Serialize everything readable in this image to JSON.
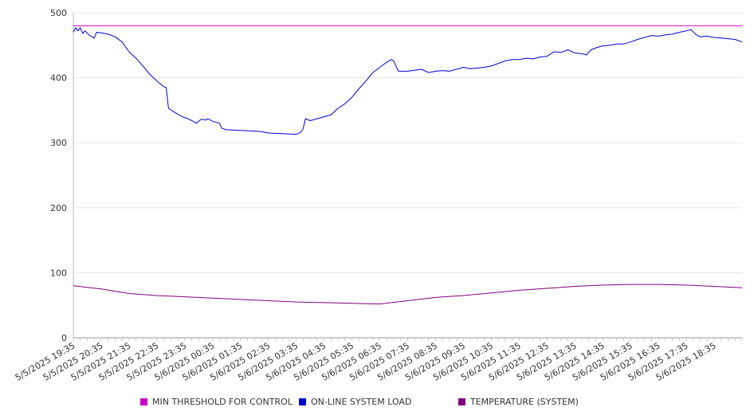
{
  "chart_data": {
    "type": "line",
    "title": "",
    "xlabel": "",
    "ylabel": "",
    "ylim": [
      0,
      500
    ],
    "yticks": [
      0,
      100,
      200,
      300,
      400,
      500
    ],
    "grid": "horizontal",
    "legend_position": "bottom",
    "x_ticks": [
      "5/5/2025 19:35",
      "5/5/2025 20:35",
      "5/5/2025 21:35",
      "5/5/2025 22:35",
      "5/5/2025 23:35",
      "5/6/2025 00:35",
      "5/6/2025 01:35",
      "5/6/2025 02:35",
      "5/6/2025 03:35",
      "5/6/2025 04:35",
      "5/6/2025 05:35",
      "5/6/2025 06:35",
      "5/6/2025 07:35",
      "5/6/2025 08:35",
      "5/6/2025 09:35",
      "5/6/2025 10:35",
      "5/6/2025 11:35",
      "5/6/2025 12:35",
      "5/6/2025 13:35",
      "5/6/2025 14:35",
      "5/6/2025 15:35",
      "5/6/2025 16:35",
      "5/6/2025 17:35",
      "5/6/2025 18:35"
    ],
    "x_start": "5/5/2025 19:35",
    "x_end": "5/6/2025 19:35",
    "series": [
      {
        "name": "MIN THRESHOLD FOR CONTROL",
        "color": "#cc00cc",
        "points": [
          [
            "5/5/2025 19:35",
            480
          ],
          [
            "5/6/2025 19:35",
            480
          ]
        ]
      },
      {
        "name": "ON-LINE SYSTEM LOAD",
        "color": "#0000cc",
        "points": [
          [
            "5/5/2025 19:35",
            470
          ],
          [
            "5/5/2025 19:40",
            477
          ],
          [
            "5/5/2025 19:45",
            472
          ],
          [
            "5/5/2025 19:50",
            477
          ],
          [
            "5/5/2025 19:55",
            468
          ],
          [
            "5/5/2025 20:00",
            472
          ],
          [
            "5/5/2025 20:10",
            465
          ],
          [
            "5/5/2025 20:20",
            461
          ],
          [
            "5/5/2025 20:25",
            470
          ],
          [
            "5/5/2025 20:35",
            469
          ],
          [
            "5/5/2025 20:50",
            467
          ],
          [
            "5/5/2025 21:05",
            463
          ],
          [
            "5/5/2025 21:20",
            455
          ],
          [
            "5/5/2025 21:35",
            440
          ],
          [
            "5/5/2025 21:50",
            430
          ],
          [
            "5/5/2025 22:05",
            418
          ],
          [
            "5/5/2025 22:20",
            405
          ],
          [
            "5/5/2025 22:35",
            395
          ],
          [
            "5/5/2025 22:50",
            386
          ],
          [
            "5/5/2025 22:55",
            385
          ],
          [
            "5/5/2025 23:00",
            353
          ],
          [
            "5/5/2025 23:15",
            346
          ],
          [
            "5/5/2025 23:30",
            340
          ],
          [
            "5/5/2025 23:45",
            336
          ],
          [
            "5/6/2025 00:00",
            330
          ],
          [
            "5/6/2025 00:10",
            336
          ],
          [
            "5/6/2025 00:20",
            335
          ],
          [
            "5/6/2025 00:25",
            337
          ],
          [
            "5/6/2025 00:35",
            333
          ],
          [
            "5/6/2025 00:50",
            330
          ],
          [
            "5/6/2025 00:55",
            322
          ],
          [
            "5/6/2025 01:05",
            320
          ],
          [
            "5/6/2025 01:35",
            319
          ],
          [
            "5/6/2025 02:05",
            318
          ],
          [
            "5/6/2025 02:20",
            317
          ],
          [
            "5/6/2025 02:35",
            315
          ],
          [
            "5/6/2025 03:05",
            314
          ],
          [
            "5/6/2025 03:35",
            313
          ],
          [
            "5/6/2025 03:45",
            316
          ],
          [
            "5/6/2025 03:50",
            322
          ],
          [
            "5/6/2025 03:55",
            337
          ],
          [
            "5/6/2025 04:05",
            334
          ],
          [
            "5/6/2025 04:20",
            337
          ],
          [
            "5/6/2025 04:35",
            340
          ],
          [
            "5/6/2025 04:50",
            343
          ],
          [
            "5/6/2025 05:05",
            353
          ],
          [
            "5/6/2025 05:20",
            360
          ],
          [
            "5/6/2025 05:35",
            370
          ],
          [
            "5/6/2025 05:50",
            383
          ],
          [
            "5/6/2025 06:05",
            395
          ],
          [
            "5/6/2025 06:20",
            408
          ],
          [
            "5/6/2025 06:35",
            416
          ],
          [
            "5/6/2025 06:50",
            424
          ],
          [
            "5/6/2025 07:00",
            428
          ],
          [
            "5/6/2025 07:05",
            426
          ],
          [
            "5/6/2025 07:10",
            418
          ],
          [
            "5/6/2025 07:15",
            410
          ],
          [
            "5/6/2025 07:35",
            410
          ],
          [
            "5/6/2025 08:05",
            413
          ],
          [
            "5/6/2025 08:20",
            408
          ],
          [
            "5/6/2025 08:35",
            410
          ],
          [
            "5/6/2025 08:50",
            411
          ],
          [
            "5/6/2025 09:05",
            410
          ],
          [
            "5/6/2025 09:20",
            413
          ],
          [
            "5/6/2025 09:35",
            416
          ],
          [
            "5/6/2025 09:50",
            414
          ],
          [
            "5/6/2025 10:05",
            415
          ],
          [
            "5/6/2025 10:20",
            416
          ],
          [
            "5/6/2025 10:35",
            418
          ],
          [
            "5/6/2025 10:50",
            422
          ],
          [
            "5/6/2025 11:05",
            426
          ],
          [
            "5/6/2025 11:20",
            428
          ],
          [
            "5/6/2025 11:35",
            428
          ],
          [
            "5/6/2025 11:50",
            430
          ],
          [
            "5/6/2025 12:05",
            429
          ],
          [
            "5/6/2025 12:20",
            432
          ],
          [
            "5/6/2025 12:35",
            433
          ],
          [
            "5/6/2025 12:50",
            440
          ],
          [
            "5/6/2025 13:05",
            439
          ],
          [
            "5/6/2025 13:20",
            443
          ],
          [
            "5/6/2025 13:35",
            438
          ],
          [
            "5/6/2025 13:50",
            437
          ],
          [
            "5/6/2025 14:00",
            435
          ],
          [
            "5/6/2025 14:10",
            443
          ],
          [
            "5/6/2025 14:20",
            446
          ],
          [
            "5/6/2025 14:35",
            449
          ],
          [
            "5/6/2025 14:50",
            450
          ],
          [
            "5/6/2025 15:05",
            452
          ],
          [
            "5/6/2025 15:20",
            452
          ],
          [
            "5/6/2025 15:35",
            455
          ],
          [
            "5/6/2025 15:50",
            459
          ],
          [
            "5/6/2025 16:05",
            462
          ],
          [
            "5/6/2025 16:20",
            465
          ],
          [
            "5/6/2025 16:35",
            464
          ],
          [
            "5/6/2025 16:50",
            466
          ],
          [
            "5/6/2025 17:05",
            467
          ],
          [
            "5/6/2025 17:20",
            470
          ],
          [
            "5/6/2025 17:35",
            472
          ],
          [
            "5/6/2025 17:45",
            474
          ],
          [
            "5/6/2025 17:55",
            467
          ],
          [
            "5/6/2025 18:05",
            463
          ],
          [
            "5/6/2025 18:20",
            464
          ],
          [
            "5/6/2025 18:35",
            462
          ],
          [
            "5/6/2025 18:50",
            461
          ],
          [
            "5/6/2025 19:05",
            460
          ],
          [
            "5/6/2025 19:20",
            459
          ],
          [
            "5/6/2025 19:35",
            455
          ]
        ]
      },
      {
        "name": "TEMPERATURE (SYSTEM)",
        "color": "#800080",
        "points": [
          [
            "5/5/2025 19:35",
            80
          ],
          [
            "5/5/2025 20:35",
            75
          ],
          [
            "5/5/2025 21:35",
            68
          ],
          [
            "5/5/2025 22:35",
            65
          ],
          [
            "5/5/2025 23:35",
            63
          ],
          [
            "5/6/2025 00:35",
            61
          ],
          [
            "5/6/2025 01:35",
            59
          ],
          [
            "5/6/2025 02:35",
            57
          ],
          [
            "5/6/2025 03:35",
            55
          ],
          [
            "5/6/2025 04:35",
            54
          ],
          [
            "5/6/2025 05:35",
            53
          ],
          [
            "5/6/2025 06:35",
            52
          ],
          [
            "5/6/2025 07:35",
            57
          ],
          [
            "5/6/2025 08:35",
            62
          ],
          [
            "5/6/2025 09:35",
            65
          ],
          [
            "5/6/2025 10:35",
            69
          ],
          [
            "5/6/2025 11:35",
            73
          ],
          [
            "5/6/2025 12:35",
            76
          ],
          [
            "5/6/2025 13:35",
            79
          ],
          [
            "5/6/2025 14:35",
            81
          ],
          [
            "5/6/2025 15:35",
            82
          ],
          [
            "5/6/2025 16:35",
            82
          ],
          [
            "5/6/2025 17:35",
            81
          ],
          [
            "5/6/2025 18:35",
            79
          ],
          [
            "5/6/2025 19:35",
            77
          ]
        ]
      }
    ]
  }
}
